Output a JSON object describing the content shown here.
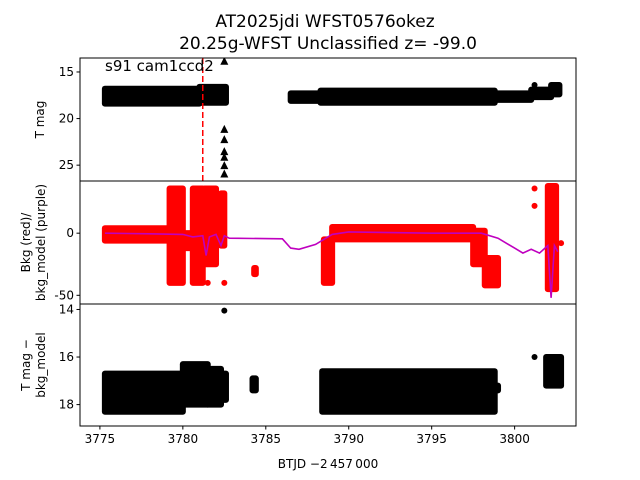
{
  "chart_data": {
    "type": "scatter",
    "title_line1": "AT2025jdi  WFST0576okez",
    "title_line2": "20.25g-WFST Unclassified z= -99.0",
    "xlabel": "BTJD −2 457 000",
    "xlim": [
      3773.8,
      3803.7
    ],
    "xticks": [
      3775,
      3780,
      3785,
      3790,
      3795,
      3800
    ],
    "marker_line": {
      "x": 3781.2,
      "color": "#ff0000",
      "style": "dashed"
    },
    "panels": [
      {
        "id": "tmag",
        "ylabel": [
          "T mag"
        ],
        "ylim": [
          26.7,
          13.5
        ],
        "inverted": true,
        "yticks": [
          15,
          20,
          25
        ],
        "annotation": "s91 cam1ccd2",
        "color": "#000000",
        "bands": [
          [
            3775.3,
            3781.0,
            16.8,
            18.4
          ],
          [
            3781.0,
            3782.6,
            16.6,
            18.3
          ],
          [
            3786.5,
            3788.3,
            17.3,
            18.1
          ],
          [
            3788.3,
            3798.8,
            17.0,
            18.3
          ],
          [
            3798.8,
            3801.0,
            17.3,
            18.0
          ],
          [
            3801.0,
            3802.2,
            16.9,
            17.7
          ],
          [
            3802.2,
            3802.7,
            16.4,
            17.4
          ]
        ],
        "points": [
          [
            3801.2,
            16.4
          ]
        ],
        "upper_limits": [
          [
            3782.5,
            13.8
          ],
          [
            3782.5,
            21.1
          ],
          [
            3782.5,
            22.2
          ],
          [
            3782.5,
            23.5
          ],
          [
            3782.5,
            24.1
          ],
          [
            3782.5,
            25.0
          ],
          [
            3782.5,
            25.9
          ]
        ]
      },
      {
        "id": "bkg",
        "ylabel": [
          "Bkg (red)/",
          "bkg_model (purple)"
        ],
        "ylim": [
          -57,
          42
        ],
        "inverted": false,
        "yticks": [
          0,
          -50
        ],
        "color": "#ff0000",
        "model_color": "#bf00bf",
        "bands": [
          [
            3775.3,
            3779.2,
            -6,
            4
          ],
          [
            3779.2,
            3780.0,
            -40,
            36
          ],
          [
            3780.0,
            3780.6,
            -12,
            0
          ],
          [
            3780.6,
            3781.2,
            -40,
            36
          ],
          [
            3781.3,
            3782.0,
            -25,
            36
          ],
          [
            3782.3,
            3782.5,
            -10,
            32
          ],
          [
            3784.3,
            3784.4,
            -33,
            -28
          ],
          [
            3788.5,
            3789.0,
            -40,
            -5
          ],
          [
            3789.0,
            3797.5,
            -5,
            5
          ],
          [
            3797.5,
            3798.2,
            -25,
            2
          ],
          [
            3798.2,
            3799.0,
            -42,
            -20
          ],
          [
            3802.0,
            3802.5,
            -45,
            38
          ]
        ],
        "points": [
          [
            3781.5,
            -40
          ],
          [
            3782.5,
            -40
          ],
          [
            3801.2,
            36
          ],
          [
            3801.2,
            22
          ],
          [
            3802.8,
            -8
          ]
        ],
        "model": [
          [
            3775.3,
            0
          ],
          [
            3778,
            -0.5
          ],
          [
            3780,
            -1
          ],
          [
            3780.6,
            -3
          ],
          [
            3781.2,
            -2
          ],
          [
            3781.4,
            -18
          ],
          [
            3781.6,
            -3
          ],
          [
            3782,
            -1
          ],
          [
            3782.3,
            -10
          ],
          [
            3782.5,
            -2
          ],
          [
            3782.8,
            -4
          ],
          [
            3786,
            -4.5
          ],
          [
            3786.5,
            -12
          ],
          [
            3787,
            -13
          ],
          [
            3788,
            -9
          ],
          [
            3789,
            -1
          ],
          [
            3790,
            1
          ],
          [
            3795,
            0
          ],
          [
            3798,
            0
          ],
          [
            3799,
            -4
          ],
          [
            3800,
            -12
          ],
          [
            3800.5,
            -16
          ],
          [
            3801,
            -13
          ],
          [
            3801.5,
            -16
          ],
          [
            3802,
            -10
          ],
          [
            3802.2,
            -52
          ],
          [
            3802.4,
            -10
          ],
          [
            3802.6,
            -15
          ]
        ]
      },
      {
        "id": "diff",
        "ylabel": [
          "T mag −",
          "bkg_model"
        ],
        "ylim": [
          18.9,
          13.77
        ],
        "inverted": true,
        "yticks": [
          14,
          16,
          18
        ],
        "color": "#000000",
        "bands": [
          [
            3775.3,
            3780.0,
            16.7,
            18.3
          ],
          [
            3780.0,
            3781.5,
            16.3,
            18.0
          ],
          [
            3781.5,
            3782.3,
            16.5,
            18.0
          ],
          [
            3782.3,
            3782.6,
            16.7,
            17.8
          ],
          [
            3784.2,
            3784.4,
            16.9,
            17.4
          ],
          [
            3788.4,
            3798.8,
            16.6,
            18.3
          ],
          [
            3798.8,
            3799.0,
            17.2,
            17.4
          ],
          [
            3801.9,
            3802.8,
            16.0,
            17.2
          ]
        ],
        "points": [
          [
            3782.5,
            14.05
          ],
          [
            3801.2,
            16.0
          ]
        ]
      }
    ]
  }
}
